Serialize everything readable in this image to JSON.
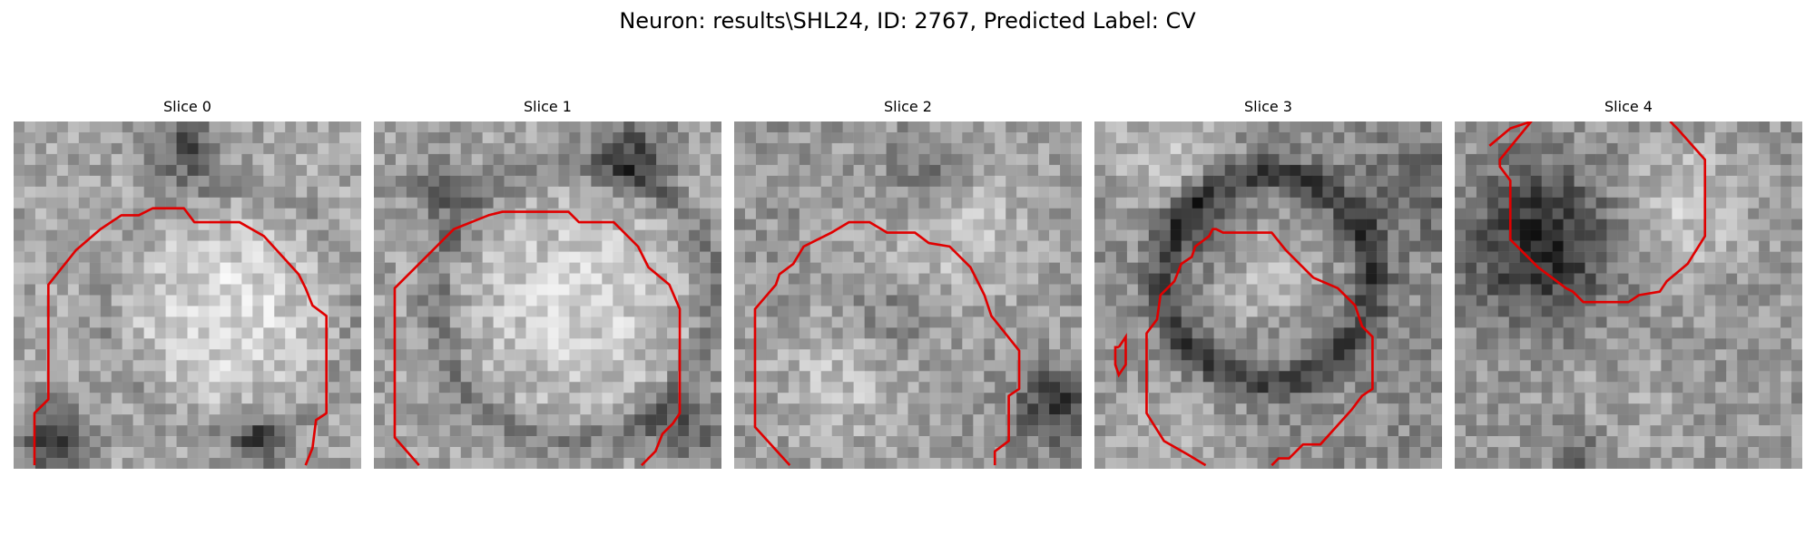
{
  "figure": {
    "title": "Neuron: results\\SHL24, ID: 2767, Predicted Label: CV"
  },
  "panels": [
    {
      "title": "Slice 0"
    },
    {
      "title": "Slice 1"
    },
    {
      "title": "Slice 2"
    },
    {
      "title": "Slice 3"
    },
    {
      "title": "Slice 4"
    }
  ],
  "colors": {
    "contour": "#e00000",
    "background": "#ffffff"
  }
}
